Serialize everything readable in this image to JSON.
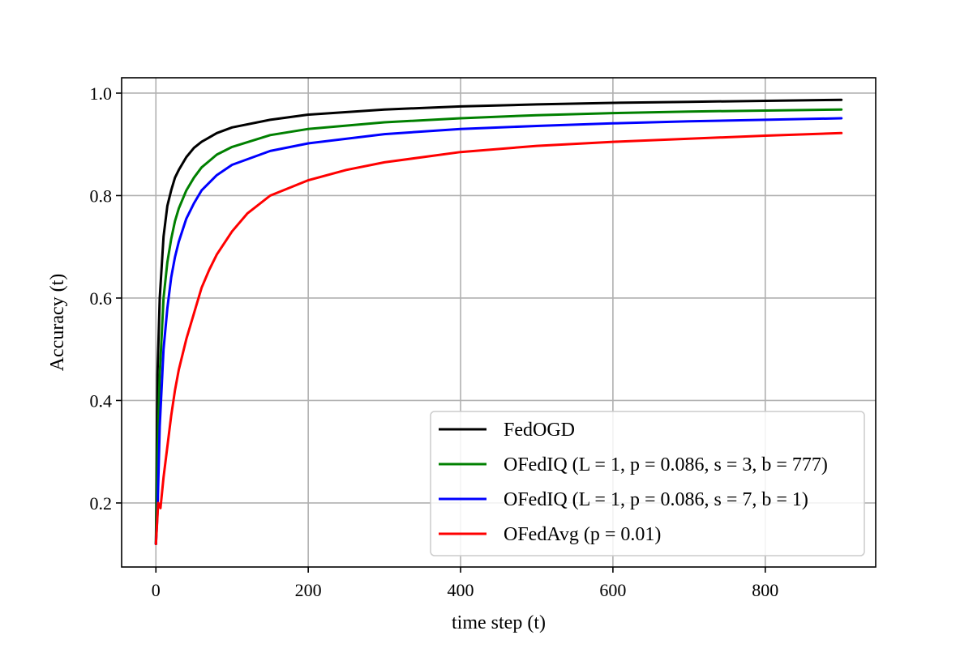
{
  "chart_data": {
    "type": "line",
    "title": "",
    "xlabel": "time step (t)",
    "ylabel": "Accuracy (t)",
    "xlim": [
      -45,
      945
    ],
    "ylim": [
      0.075,
      1.03
    ],
    "xticks": [
      0,
      200,
      400,
      600,
      800
    ],
    "yticks": [
      0.2,
      0.4,
      0.6,
      0.8,
      1.0
    ],
    "xtick_labels": [
      "0",
      "200",
      "400",
      "600",
      "800"
    ],
    "ytick_labels": [
      "0.2",
      "0.4",
      "0.6",
      "0.8",
      "1.0"
    ],
    "grid": true,
    "legend_position": "lower-right",
    "series": [
      {
        "name": "FedOGD",
        "color": "#000000",
        "x": [
          0,
          2,
          5,
          10,
          15,
          20,
          25,
          30,
          40,
          50,
          60,
          80,
          100,
          150,
          200,
          300,
          400,
          500,
          600,
          700,
          800,
          900
        ],
        "y": [
          0.12,
          0.45,
          0.6,
          0.72,
          0.78,
          0.81,
          0.835,
          0.85,
          0.875,
          0.893,
          0.905,
          0.922,
          0.933,
          0.948,
          0.958,
          0.968,
          0.974,
          0.978,
          0.981,
          0.983,
          0.985,
          0.987
        ]
      },
      {
        "name": "OFedIQ (L = 1, p = 0.086, s = 3, b = 777)",
        "color": "#008000",
        "x": [
          0,
          2,
          5,
          10,
          15,
          20,
          25,
          30,
          40,
          50,
          60,
          80,
          100,
          150,
          200,
          300,
          400,
          500,
          600,
          700,
          800,
          900
        ],
        "y": [
          0.12,
          0.3,
          0.45,
          0.6,
          0.67,
          0.715,
          0.75,
          0.775,
          0.81,
          0.835,
          0.855,
          0.88,
          0.895,
          0.918,
          0.93,
          0.943,
          0.951,
          0.957,
          0.961,
          0.964,
          0.966,
          0.968
        ]
      },
      {
        "name": "OFedIQ (L = 1, p = 0.086, s = 7, b = 1)",
        "color": "#0000ff",
        "x": [
          0,
          2,
          5,
          10,
          15,
          20,
          25,
          30,
          40,
          50,
          60,
          80,
          100,
          150,
          200,
          300,
          400,
          500,
          600,
          700,
          800,
          900
        ],
        "y": [
          0.12,
          0.18,
          0.35,
          0.5,
          0.58,
          0.64,
          0.68,
          0.71,
          0.755,
          0.785,
          0.81,
          0.84,
          0.86,
          0.887,
          0.902,
          0.92,
          0.93,
          0.936,
          0.941,
          0.945,
          0.948,
          0.951
        ]
      },
      {
        "name": "OFedAvg (p = 0.01)",
        "color": "#ff0000",
        "x": [
          0,
          3,
          6,
          10,
          15,
          20,
          25,
          30,
          40,
          50,
          60,
          70,
          80,
          100,
          120,
          150,
          200,
          250,
          300,
          400,
          500,
          600,
          700,
          800,
          900
        ],
        "y": [
          0.12,
          0.2,
          0.19,
          0.25,
          0.31,
          0.37,
          0.42,
          0.46,
          0.52,
          0.57,
          0.62,
          0.655,
          0.685,
          0.73,
          0.765,
          0.8,
          0.83,
          0.85,
          0.865,
          0.885,
          0.897,
          0.905,
          0.911,
          0.917,
          0.922
        ]
      }
    ]
  }
}
